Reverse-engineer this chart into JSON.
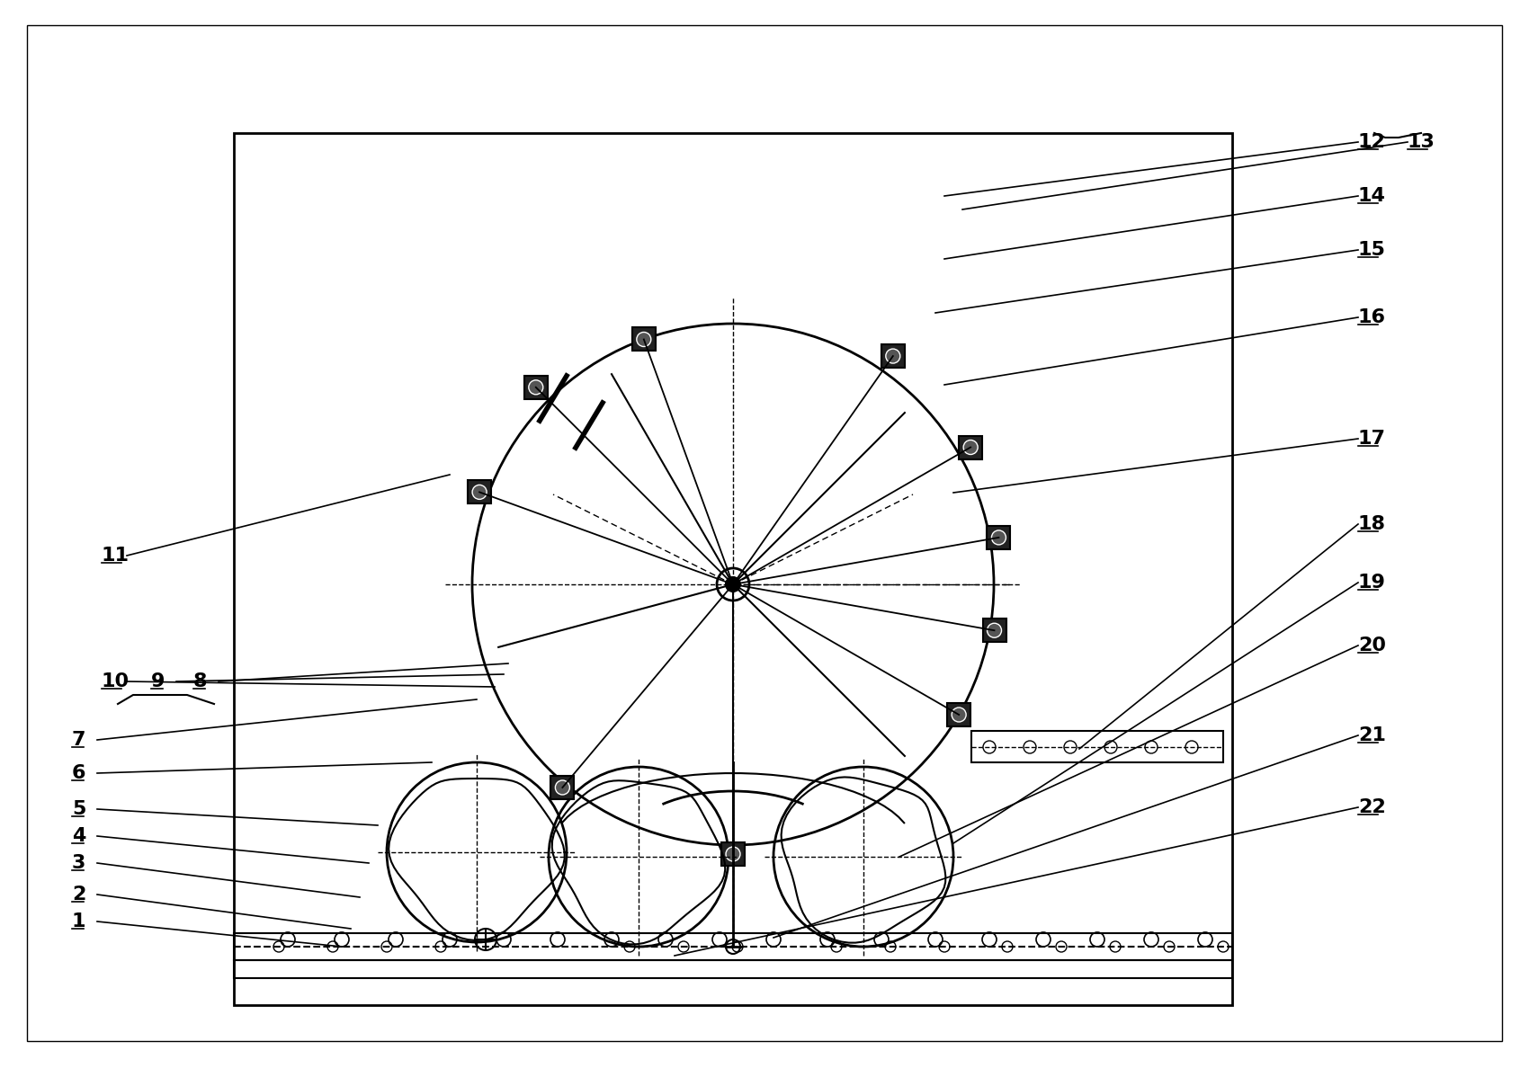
{
  "bg_color": "#ffffff",
  "line_color": "#000000",
  "labels_left": [
    "1",
    "2",
    "3",
    "4",
    "5",
    "6",
    "7",
    "8",
    "9",
    "10",
    "11"
  ],
  "labels_right": [
    "12",
    "13",
    "14",
    "15",
    "16",
    "17",
    "18",
    "19",
    "20",
    "21",
    "22"
  ],
  "title": "",
  "fig_width": 17.0,
  "fig_height": 12.08,
  "dpi": 100
}
